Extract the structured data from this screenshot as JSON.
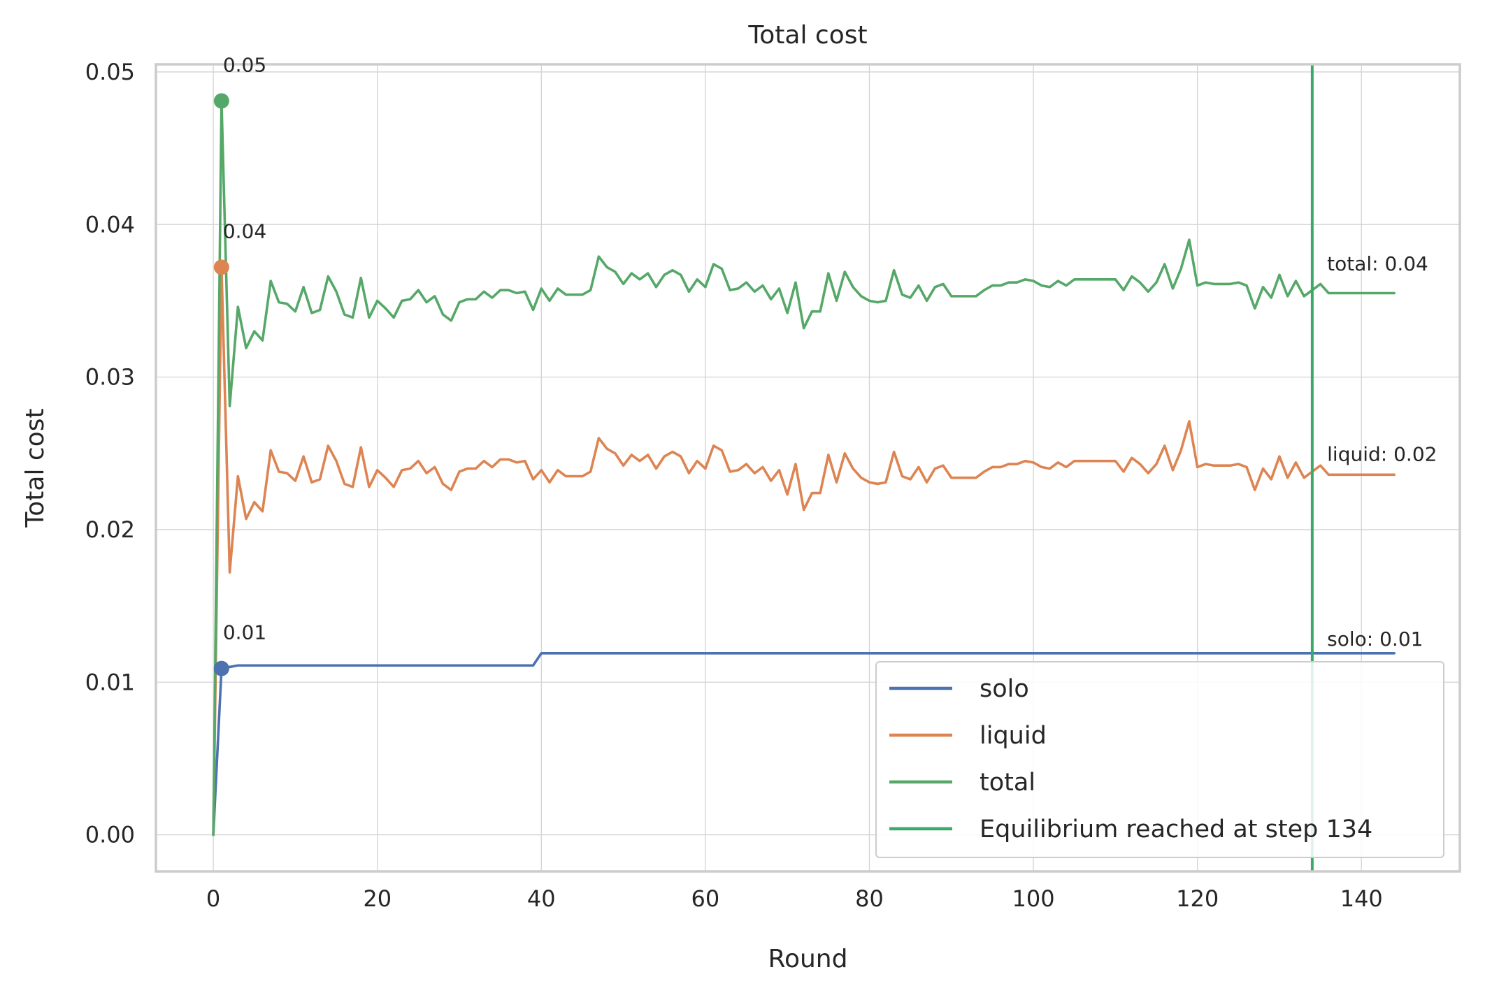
{
  "chart_data": {
    "type": "line",
    "title": "Total cost",
    "xlabel": "Round",
    "ylabel": "Total cost",
    "xlim": [
      -7,
      152
    ],
    "ylim": [
      -0.0024,
      0.0505
    ],
    "xticks": [
      0,
      20,
      40,
      60,
      80,
      100,
      120,
      140
    ],
    "yticks": [
      0.0,
      0.01,
      0.02,
      0.03,
      0.04,
      0.05
    ],
    "ytick_labels": [
      "0.00",
      "0.01",
      "0.02",
      "0.03",
      "0.04",
      "0.05"
    ],
    "grid": true,
    "legend_position": "lower-right",
    "series": [
      {
        "name": "solo",
        "color": "#4c72b0",
        "x": [
          0,
          1,
          2,
          3,
          39,
          40,
          144
        ],
        "y": [
          0.0,
          0.0109,
          0.011,
          0.0111,
          0.0111,
          0.0119,
          0.0119
        ]
      },
      {
        "name": "liquid",
        "color": "#dd8452",
        "x": [
          0,
          1,
          2,
          3,
          4,
          5,
          6,
          7,
          8,
          9,
          10,
          11,
          12,
          13,
          14,
          15,
          16,
          17,
          18,
          19,
          20,
          21,
          22,
          23,
          24,
          25,
          26,
          27,
          28,
          29,
          30,
          31,
          32,
          33,
          34,
          35,
          36,
          37,
          38,
          39,
          40,
          41,
          42,
          43,
          44,
          45,
          46,
          47,
          48,
          49,
          50,
          51,
          52,
          53,
          54,
          55,
          56,
          57,
          58,
          59,
          60,
          61,
          62,
          63,
          64,
          65,
          66,
          67,
          68,
          69,
          70,
          71,
          72,
          73,
          74,
          75,
          76,
          77,
          78,
          79,
          80,
          81,
          82,
          83,
          84,
          85,
          86,
          87,
          88,
          89,
          90,
          91,
          92,
          93,
          94,
          95,
          96,
          97,
          98,
          99,
          100,
          101,
          102,
          103,
          104,
          105,
          106,
          107,
          108,
          109,
          110,
          111,
          112,
          113,
          114,
          115,
          116,
          117,
          118,
          119,
          120,
          121,
          122,
          123,
          124,
          125,
          126,
          127,
          128,
          129,
          130,
          131,
          132,
          133,
          134,
          135,
          136,
          137,
          138,
          139,
          140,
          141,
          142,
          143,
          144
        ],
        "y": [
          0.0,
          0.0372,
          0.0172,
          0.0235,
          0.0207,
          0.0218,
          0.0212,
          0.0252,
          0.0238,
          0.0237,
          0.0232,
          0.0248,
          0.0231,
          0.0233,
          0.0255,
          0.0245,
          0.023,
          0.0228,
          0.0254,
          0.0228,
          0.0239,
          0.0234,
          0.0228,
          0.0239,
          0.024,
          0.0245,
          0.0237,
          0.0241,
          0.023,
          0.0226,
          0.0238,
          0.024,
          0.024,
          0.0245,
          0.0241,
          0.0246,
          0.0246,
          0.0244,
          0.0245,
          0.0233,
          0.0239,
          0.0231,
          0.0239,
          0.0235,
          0.0235,
          0.0235,
          0.0238,
          0.026,
          0.0253,
          0.025,
          0.0242,
          0.0249,
          0.0245,
          0.0249,
          0.024,
          0.0248,
          0.0251,
          0.0248,
          0.0237,
          0.0245,
          0.024,
          0.0255,
          0.0252,
          0.0238,
          0.0239,
          0.0243,
          0.0237,
          0.0241,
          0.0232,
          0.0239,
          0.0223,
          0.0243,
          0.0213,
          0.0224,
          0.0224,
          0.0249,
          0.0231,
          0.025,
          0.024,
          0.0234,
          0.0231,
          0.023,
          0.0231,
          0.0251,
          0.0235,
          0.0233,
          0.0241,
          0.0231,
          0.024,
          0.0242,
          0.0234,
          0.0234,
          0.0234,
          0.0234,
          0.0238,
          0.0241,
          0.0241,
          0.0243,
          0.0243,
          0.0245,
          0.0244,
          0.0241,
          0.024,
          0.0244,
          0.0241,
          0.0245,
          0.0245,
          0.0245,
          0.0245,
          0.0245,
          0.0245,
          0.0238,
          0.0247,
          0.0243,
          0.0237,
          0.0243,
          0.0255,
          0.0239,
          0.0252,
          0.0271,
          0.0241,
          0.0243,
          0.0242,
          0.0242,
          0.0242,
          0.0243,
          0.0241,
          0.0226,
          0.024,
          0.0233,
          0.0248,
          0.0234,
          0.0244,
          0.0234,
          0.0238,
          0.0242,
          0.0236,
          0.0236,
          0.0236,
          0.0236,
          0.0236,
          0.0236,
          0.0236,
          0.0236,
          0.0236
        ]
      },
      {
        "name": "total",
        "color": "#55a868",
        "x": [
          0,
          1,
          2,
          3,
          4,
          5,
          6,
          7,
          8,
          9,
          10,
          11,
          12,
          13,
          14,
          15,
          16,
          17,
          18,
          19,
          20,
          21,
          22,
          23,
          24,
          25,
          26,
          27,
          28,
          29,
          30,
          31,
          32,
          33,
          34,
          35,
          36,
          37,
          38,
          39,
          40,
          41,
          42,
          43,
          44,
          45,
          46,
          47,
          48,
          49,
          50,
          51,
          52,
          53,
          54,
          55,
          56,
          57,
          58,
          59,
          60,
          61,
          62,
          63,
          64,
          65,
          66,
          67,
          68,
          69,
          70,
          71,
          72,
          73,
          74,
          75,
          76,
          77,
          78,
          79,
          80,
          81,
          82,
          83,
          84,
          85,
          86,
          87,
          88,
          89,
          90,
          91,
          92,
          93,
          94,
          95,
          96,
          97,
          98,
          99,
          100,
          101,
          102,
          103,
          104,
          105,
          106,
          107,
          108,
          109,
          110,
          111,
          112,
          113,
          114,
          115,
          116,
          117,
          118,
          119,
          120,
          121,
          122,
          123,
          124,
          125,
          126,
          127,
          128,
          129,
          130,
          131,
          132,
          133,
          134,
          135,
          136,
          137,
          138,
          139,
          140,
          141,
          142,
          143,
          144
        ],
        "y": [
          0.0,
          0.0481,
          0.0281,
          0.0346,
          0.0319,
          0.033,
          0.0324,
          0.0363,
          0.0349,
          0.0348,
          0.0343,
          0.0359,
          0.0342,
          0.0344,
          0.0366,
          0.0356,
          0.0341,
          0.0339,
          0.0365,
          0.0339,
          0.035,
          0.0345,
          0.0339,
          0.035,
          0.0351,
          0.0357,
          0.0349,
          0.0353,
          0.0341,
          0.0337,
          0.0349,
          0.0351,
          0.0351,
          0.0356,
          0.0352,
          0.0357,
          0.0357,
          0.0355,
          0.0356,
          0.0344,
          0.0358,
          0.035,
          0.0358,
          0.0354,
          0.0354,
          0.0354,
          0.0357,
          0.0379,
          0.0372,
          0.0369,
          0.0361,
          0.0368,
          0.0364,
          0.0368,
          0.0359,
          0.0367,
          0.037,
          0.0367,
          0.0356,
          0.0364,
          0.0359,
          0.0374,
          0.0371,
          0.0357,
          0.0358,
          0.0362,
          0.0356,
          0.036,
          0.0351,
          0.0358,
          0.0342,
          0.0362,
          0.0332,
          0.0343,
          0.0343,
          0.0368,
          0.035,
          0.0369,
          0.0359,
          0.0353,
          0.035,
          0.0349,
          0.035,
          0.037,
          0.0354,
          0.0352,
          0.036,
          0.035,
          0.0359,
          0.0361,
          0.0353,
          0.0353,
          0.0353,
          0.0353,
          0.0357,
          0.036,
          0.036,
          0.0362,
          0.0362,
          0.0364,
          0.0363,
          0.036,
          0.0359,
          0.0363,
          0.036,
          0.0364,
          0.0364,
          0.0364,
          0.0364,
          0.0364,
          0.0364,
          0.0357,
          0.0366,
          0.0362,
          0.0356,
          0.0362,
          0.0374,
          0.0358,
          0.0371,
          0.039,
          0.036,
          0.0362,
          0.0361,
          0.0361,
          0.0361,
          0.0362,
          0.036,
          0.0345,
          0.0359,
          0.0352,
          0.0367,
          0.0353,
          0.0363,
          0.0353,
          0.0357,
          0.0361,
          0.0355,
          0.0355,
          0.0355,
          0.0355,
          0.0355,
          0.0355,
          0.0355,
          0.0355,
          0.0355
        ]
      }
    ],
    "markers": [
      {
        "series": "solo",
        "x": 1,
        "y": 0.0109,
        "label": "0.01"
      },
      {
        "series": "liquid",
        "x": 1,
        "y": 0.0372,
        "label": "0.04"
      },
      {
        "series": "total",
        "x": 1,
        "y": 0.0481,
        "label": "0.05"
      }
    ],
    "end_labels": [
      {
        "series": "total",
        "y": 0.037,
        "label": "total: 0.04"
      },
      {
        "series": "liquid",
        "y": 0.0245,
        "label": "liquid: 0.02"
      },
      {
        "series": "solo",
        "y": 0.0124,
        "label": "solo: 0.01"
      }
    ],
    "vline": {
      "x": 134,
      "color": "#3aaa6a",
      "label": "Equilibrium reached at step 134"
    },
    "legend": [
      "solo",
      "liquid",
      "total",
      "Equilibrium reached at step 134"
    ]
  }
}
